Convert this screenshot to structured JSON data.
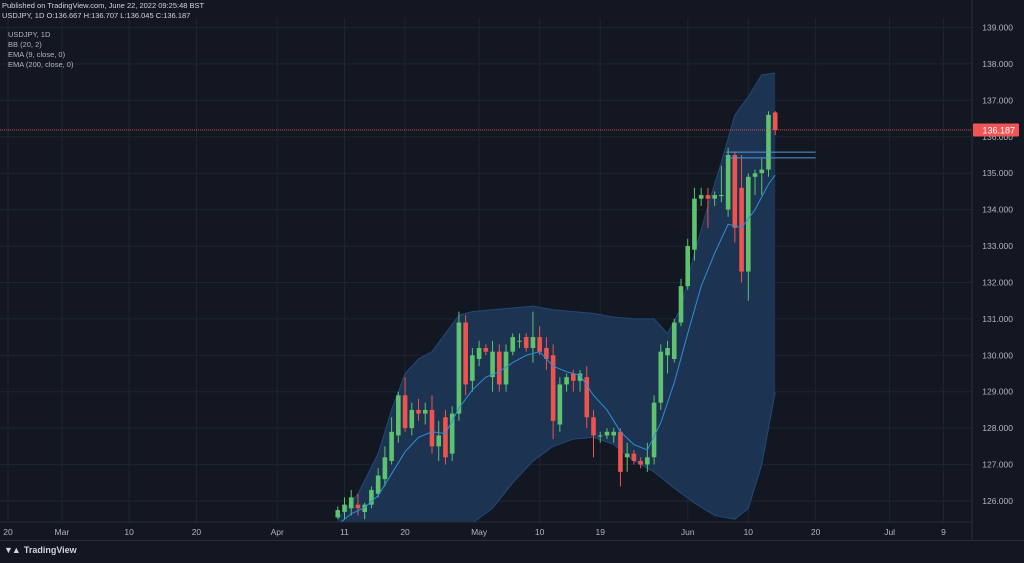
{
  "header": {
    "published": "Published on TradingView.com, June 22, 2022 09:25:48 BST",
    "symbol_line": "USDJPY, 1D  O:136.667  H:136.707  L:136.045  C:136.187"
  },
  "legend": {
    "symbol": "USDJPY, 1D",
    "indicators": [
      "BB (20, 2)",
      "EMA (9, close, 0)",
      "EMA (200, close, 0)"
    ]
  },
  "footer": {
    "brand": "TradingView"
  },
  "colors": {
    "background": "#131722",
    "up": "#5fc26f",
    "down": "#ef5350",
    "bb_fill": "#1c3451",
    "ema9": "#2e8fd6",
    "price_line": "#f05454",
    "grid": "#1f2433",
    "axis_text": "#b2b5be"
  },
  "chart_data": {
    "type": "candlestick",
    "symbol": "USDJPY",
    "timeframe": "1D",
    "ylim": [
      125.5,
      139.2
    ],
    "y_ticks": [
      "126.000",
      "127.000",
      "128.000",
      "129.000",
      "130.000",
      "131.000",
      "132.000",
      "133.000",
      "134.000",
      "135.000",
      "136.000",
      "137.000",
      "138.000",
      "139.000"
    ],
    "x_ticks": [
      {
        "label": "20",
        "day": 0
      },
      {
        "label": "Mar",
        "day": 8
      },
      {
        "label": "10",
        "day": 18
      },
      {
        "label": "20",
        "day": 28
      },
      {
        "label": "Apr",
        "day": 40
      },
      {
        "label": "11",
        "day": 50
      },
      {
        "label": "20",
        "day": 59
      },
      {
        "label": "May",
        "day": 70
      },
      {
        "label": "10",
        "day": 79
      },
      {
        "label": "19",
        "day": 88
      },
      {
        "label": "Jun",
        "day": 101
      },
      {
        "label": "10",
        "day": 110
      },
      {
        "label": "20",
        "day": 120
      },
      {
        "label": "Jul",
        "day": 131
      },
      {
        "label": "9",
        "day": 139
      }
    ],
    "last_price": "136.187",
    "candles": [
      {
        "day": 49,
        "o": 125.55,
        "h": 125.85,
        "l": 125.5,
        "c": 125.75
      },
      {
        "day": 50,
        "o": 125.7,
        "h": 126.1,
        "l": 125.5,
        "c": 125.9
      },
      {
        "day": 51,
        "o": 125.8,
        "h": 126.3,
        "l": 125.6,
        "c": 126.1
      },
      {
        "day": 52,
        "o": 125.9,
        "h": 126.2,
        "l": 125.6,
        "c": 125.8
      },
      {
        "day": 53,
        "o": 125.7,
        "h": 125.95,
        "l": 125.5,
        "c": 125.9
      },
      {
        "day": 54,
        "o": 125.9,
        "h": 126.4,
        "l": 125.8,
        "c": 126.3
      },
      {
        "day": 55,
        "o": 126.2,
        "h": 126.9,
        "l": 126.1,
        "c": 126.7
      },
      {
        "day": 56,
        "o": 126.6,
        "h": 127.5,
        "l": 126.4,
        "c": 127.2
      },
      {
        "day": 57,
        "o": 127.1,
        "h": 128.3,
        "l": 127.0,
        "c": 127.9
      },
      {
        "day": 58,
        "o": 127.8,
        "h": 129.0,
        "l": 127.6,
        "c": 128.9
      },
      {
        "day": 59,
        "o": 128.9,
        "h": 129.4,
        "l": 127.9,
        "c": 128.0
      },
      {
        "day": 60,
        "o": 128.0,
        "h": 128.7,
        "l": 127.8,
        "c": 128.5
      },
      {
        "day": 61,
        "o": 128.5,
        "h": 128.8,
        "l": 128.2,
        "c": 128.4
      },
      {
        "day": 62,
        "o": 128.4,
        "h": 128.7,
        "l": 128.1,
        "c": 128.5
      },
      {
        "day": 63,
        "o": 128.5,
        "h": 128.9,
        "l": 127.3,
        "c": 127.5
      },
      {
        "day": 64,
        "o": 127.5,
        "h": 128.2,
        "l": 127.1,
        "c": 127.8
      },
      {
        "day": 65,
        "o": 128.3,
        "h": 128.5,
        "l": 127.0,
        "c": 127.2
      },
      {
        "day": 66,
        "o": 127.3,
        "h": 128.6,
        "l": 127.1,
        "c": 128.4
      },
      {
        "day": 67,
        "o": 128.4,
        "h": 131.2,
        "l": 128.2,
        "c": 130.9
      },
      {
        "day": 68,
        "o": 130.9,
        "h": 131.1,
        "l": 128.9,
        "c": 129.2
      },
      {
        "day": 69,
        "o": 129.3,
        "h": 130.2,
        "l": 129.0,
        "c": 130.0
      },
      {
        "day": 70,
        "o": 129.9,
        "h": 130.4,
        "l": 129.7,
        "c": 130.2
      },
      {
        "day": 71,
        "o": 130.2,
        "h": 130.3,
        "l": 130.0,
        "c": 130.1
      },
      {
        "day": 72,
        "o": 129.4,
        "h": 130.4,
        "l": 129.0,
        "c": 130.1
      },
      {
        "day": 73,
        "o": 130.1,
        "h": 130.3,
        "l": 129.0,
        "c": 129.2
      },
      {
        "day": 74,
        "o": 129.2,
        "h": 130.3,
        "l": 129.0,
        "c": 130.1
      },
      {
        "day": 75,
        "o": 130.1,
        "h": 130.6,
        "l": 130.0,
        "c": 130.5
      },
      {
        "day": 76,
        "o": 130.4,
        "h": 130.6,
        "l": 130.2,
        "c": 130.4
      },
      {
        "day": 77,
        "o": 130.5,
        "h": 130.6,
        "l": 130.1,
        "c": 130.2
      },
      {
        "day": 78,
        "o": 130.2,
        "h": 131.2,
        "l": 129.8,
        "c": 130.5
      },
      {
        "day": 79,
        "o": 130.5,
        "h": 130.8,
        "l": 130.0,
        "c": 130.1
      },
      {
        "day": 80,
        "o": 130.2,
        "h": 130.5,
        "l": 129.6,
        "c": 129.9
      },
      {
        "day": 81,
        "o": 130.0,
        "h": 130.3,
        "l": 127.7,
        "c": 128.2
      },
      {
        "day": 82,
        "o": 128.1,
        "h": 129.4,
        "l": 127.9,
        "c": 129.2
      },
      {
        "day": 83,
        "o": 129.2,
        "h": 129.5,
        "l": 129.0,
        "c": 129.4
      },
      {
        "day": 84,
        "o": 129.5,
        "h": 129.6,
        "l": 129.0,
        "c": 129.3
      },
      {
        "day": 85,
        "o": 129.3,
        "h": 129.6,
        "l": 129.0,
        "c": 129.5
      },
      {
        "day": 86,
        "o": 129.4,
        "h": 129.7,
        "l": 128.0,
        "c": 128.3
      },
      {
        "day": 87,
        "o": 128.3,
        "h": 128.5,
        "l": 127.2,
        "c": 127.8
      },
      {
        "day": 88,
        "o": 127.8,
        "h": 127.9,
        "l": 127.6,
        "c": 127.8
      },
      {
        "day": 89,
        "o": 127.8,
        "h": 128.0,
        "l": 127.7,
        "c": 127.9
      },
      {
        "day": 90,
        "o": 127.8,
        "h": 128.0,
        "l": 127.6,
        "c": 127.9
      },
      {
        "day": 91,
        "o": 127.9,
        "h": 128.0,
        "l": 126.4,
        "c": 126.8
      },
      {
        "day": 92,
        "o": 127.2,
        "h": 127.6,
        "l": 126.8,
        "c": 127.3
      },
      {
        "day": 93,
        "o": 127.3,
        "h": 127.4,
        "l": 127.0,
        "c": 127.1
      },
      {
        "day": 94,
        "o": 127.1,
        "h": 127.2,
        "l": 126.9,
        "c": 127.0
      },
      {
        "day": 95,
        "o": 127.0,
        "h": 127.6,
        "l": 126.8,
        "c": 127.2
      },
      {
        "day": 96,
        "o": 127.2,
        "h": 128.9,
        "l": 127.0,
        "c": 128.7
      },
      {
        "day": 97,
        "o": 128.7,
        "h": 130.3,
        "l": 128.5,
        "c": 130.1
      },
      {
        "day": 98,
        "o": 130.0,
        "h": 130.4,
        "l": 129.5,
        "c": 130.2
      },
      {
        "day": 99,
        "o": 129.9,
        "h": 131.0,
        "l": 129.8,
        "c": 130.9
      },
      {
        "day": 100,
        "o": 130.9,
        "h": 132.1,
        "l": 130.8,
        "c": 131.9
      },
      {
        "day": 101,
        "o": 131.9,
        "h": 133.2,
        "l": 131.8,
        "c": 133.0
      },
      {
        "day": 102,
        "o": 132.9,
        "h": 134.6,
        "l": 132.6,
        "c": 134.3
      },
      {
        "day": 103,
        "o": 134.3,
        "h": 134.6,
        "l": 134.1,
        "c": 134.4
      },
      {
        "day": 104,
        "o": 134.4,
        "h": 134.6,
        "l": 133.5,
        "c": 134.3
      },
      {
        "day": 105,
        "o": 134.3,
        "h": 134.5,
        "l": 134.1,
        "c": 134.4
      },
      {
        "day": 106,
        "o": 134.4,
        "h": 135.2,
        "l": 134.2,
        "c": 134.4
      },
      {
        "day": 107,
        "o": 134.0,
        "h": 135.7,
        "l": 133.8,
        "c": 135.5
      },
      {
        "day": 108,
        "o": 135.5,
        "h": 135.6,
        "l": 133.1,
        "c": 133.5
      },
      {
        "day": 109,
        "o": 134.6,
        "h": 135.5,
        "l": 132.0,
        "c": 132.3
      },
      {
        "day": 110,
        "o": 132.3,
        "h": 135.0,
        "l": 131.5,
        "c": 134.9
      },
      {
        "day": 111,
        "o": 134.9,
        "h": 135.1,
        "l": 134.4,
        "c": 135.0
      },
      {
        "day": 112,
        "o": 135.0,
        "h": 135.4,
        "l": 134.4,
        "c": 135.1
      },
      {
        "day": 113,
        "o": 135.1,
        "h": 136.7,
        "l": 134.9,
        "c": 136.6
      },
      {
        "day": 114,
        "o": 136.667,
        "h": 136.707,
        "l": 136.045,
        "c": 136.187
      }
    ],
    "ema9": [
      [
        49,
        125.35
      ],
      [
        51,
        125.65
      ],
      [
        53,
        125.82
      ],
      [
        55,
        126.15
      ],
      [
        57,
        126.75
      ],
      [
        59,
        127.35
      ],
      [
        61,
        127.75
      ],
      [
        63,
        127.9
      ],
      [
        65,
        127.85
      ],
      [
        67,
        128.55
      ],
      [
        69,
        129.05
      ],
      [
        71,
        129.4
      ],
      [
        73,
        129.55
      ],
      [
        75,
        129.8
      ],
      [
        77,
        130.0
      ],
      [
        79,
        130.1
      ],
      [
        81,
        129.7
      ],
      [
        83,
        129.55
      ],
      [
        85,
        129.45
      ],
      [
        87,
        128.9
      ],
      [
        89,
        128.5
      ],
      [
        91,
        127.9
      ],
      [
        93,
        127.55
      ],
      [
        95,
        127.4
      ],
      [
        97,
        128.15
      ],
      [
        99,
        129.25
      ],
      [
        101,
        130.6
      ],
      [
        103,
        131.9
      ],
      [
        105,
        132.8
      ],
      [
        107,
        133.6
      ],
      [
        109,
        133.5
      ],
      [
        111,
        134.0
      ],
      [
        113,
        134.7
      ],
      [
        114,
        134.95
      ]
    ],
    "bb_upper": [
      [
        49,
        125.5
      ],
      [
        52,
        126.2
      ],
      [
        55,
        127.3
      ],
      [
        57,
        128.5
      ],
      [
        59,
        129.5
      ],
      [
        61,
        129.9
      ],
      [
        63,
        130.1
      ],
      [
        65,
        130.6
      ],
      [
        67,
        131.1
      ],
      [
        69,
        131.2
      ],
      [
        72,
        131.25
      ],
      [
        75,
        131.3
      ],
      [
        78,
        131.35
      ],
      [
        81,
        131.25
      ],
      [
        84,
        131.2
      ],
      [
        87,
        131.15
      ],
      [
        90,
        131.05
      ],
      [
        93,
        131.0
      ],
      [
        96,
        131.0
      ],
      [
        98,
        130.6
      ],
      [
        100,
        131.3
      ],
      [
        102,
        132.8
      ],
      [
        104,
        134.1
      ],
      [
        106,
        135.3
      ],
      [
        108,
        136.6
      ],
      [
        110,
        137.1
      ],
      [
        112,
        137.7
      ],
      [
        114,
        137.75
      ]
    ],
    "bb_lower": [
      [
        66,
        125.2
      ],
      [
        69,
        125.4
      ],
      [
        72,
        125.8
      ],
      [
        75,
        126.5
      ],
      [
        78,
        127.1
      ],
      [
        81,
        127.5
      ],
      [
        84,
        127.7
      ],
      [
        87,
        127.75
      ],
      [
        90,
        127.55
      ],
      [
        93,
        127.1
      ],
      [
        96,
        126.8
      ],
      [
        99,
        126.35
      ],
      [
        102,
        125.95
      ],
      [
        105,
        125.6
      ],
      [
        108,
        125.5
      ],
      [
        110,
        125.8
      ],
      [
        112,
        127.0
      ],
      [
        114,
        129.0
      ]
    ],
    "horizontal_lines": [
      135.58,
      135.42
    ]
  }
}
